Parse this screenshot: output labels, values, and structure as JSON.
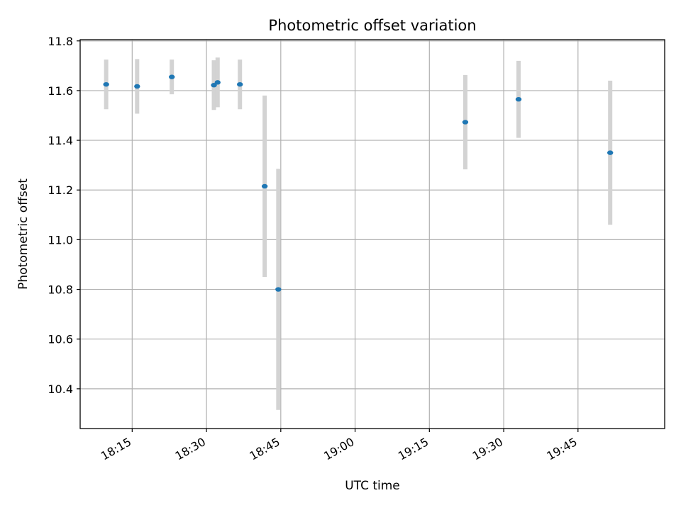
{
  "chart_data": {
    "type": "scatter",
    "title": "Photometric offset variation",
    "xlabel": "UTC time",
    "ylabel": "Photometric offset",
    "x_unit": "UTC clock time (HH:MM)",
    "xlim": [
      "18:04:30",
      "20:02:30"
    ],
    "ylim": [
      10.24,
      11.805
    ],
    "x_ticks": [
      "18:15",
      "18:30",
      "18:45",
      "19:00",
      "19:15",
      "19:30",
      "19:45"
    ],
    "y_ticks": [
      10.4,
      10.6,
      10.8,
      11.0,
      11.2,
      11.4,
      11.6,
      11.8
    ],
    "grid": true,
    "legend": "none",
    "marker_color": "#1f77b4",
    "errorbar_color": "#d3d3d3",
    "points": [
      {
        "time": "18:09:45",
        "y": 11.625,
        "yerr": 0.1
      },
      {
        "time": "18:16:00",
        "y": 11.617,
        "yerr": 0.11
      },
      {
        "time": "18:23:00",
        "y": 11.655,
        "yerr": 0.07
      },
      {
        "time": "18:31:30",
        "y": 11.622,
        "yerr": 0.1
      },
      {
        "time": "18:32:15",
        "y": 11.633,
        "yerr": 0.1
      },
      {
        "time": "18:36:45",
        "y": 11.625,
        "yerr": 0.1
      },
      {
        "time": "18:41:45",
        "y": 11.215,
        "yerr": 0.365
      },
      {
        "time": "18:44:30",
        "y": 10.8,
        "yerr": 0.485
      },
      {
        "time": "19:22:15",
        "y": 11.473,
        "yerr": 0.19
      },
      {
        "time": "19:33:00",
        "y": 11.565,
        "yerr": 0.155
      },
      {
        "time": "19:51:30",
        "y": 11.35,
        "yerr": 0.29
      }
    ]
  }
}
